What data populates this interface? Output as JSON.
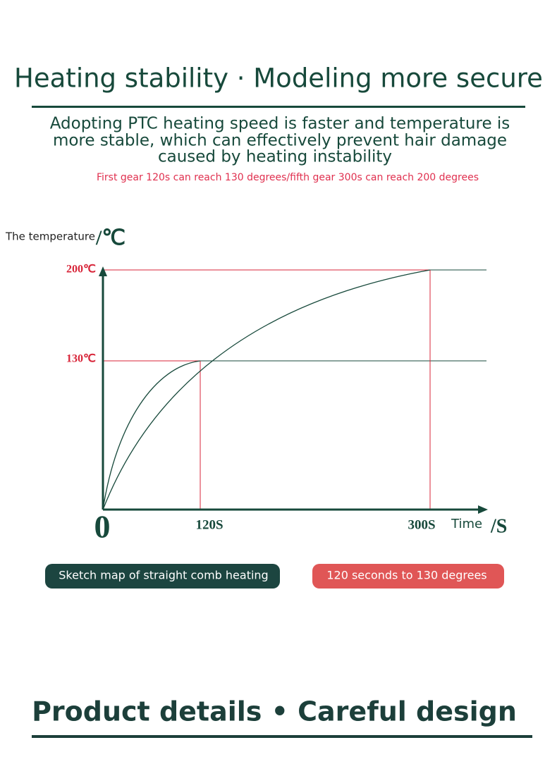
{
  "header": {
    "title": "Heating stability · Modeling more secure",
    "description": [
      "Adopting PTC heating speed is faster and temperature is",
      "more stable, which can effectively prevent hair damage",
      "caused by heating instability"
    ],
    "note": "First gear 120s can reach 130 degrees/fifth gear 300s can reach 200 degrees"
  },
  "diagram": {
    "y_label": "The temperature",
    "y_unit": "/℃",
    "y_marks": [
      "200℃",
      "130℃"
    ],
    "origin": "0",
    "x_marks": [
      "120S",
      "300S"
    ],
    "x_label": "Time",
    "x_unit": "/S"
  },
  "badges": [
    "Sketch map of straight comb heating",
    "120 seconds to 130 degrees"
  ],
  "footer": {
    "title": "Product details • Careful design"
  }
}
